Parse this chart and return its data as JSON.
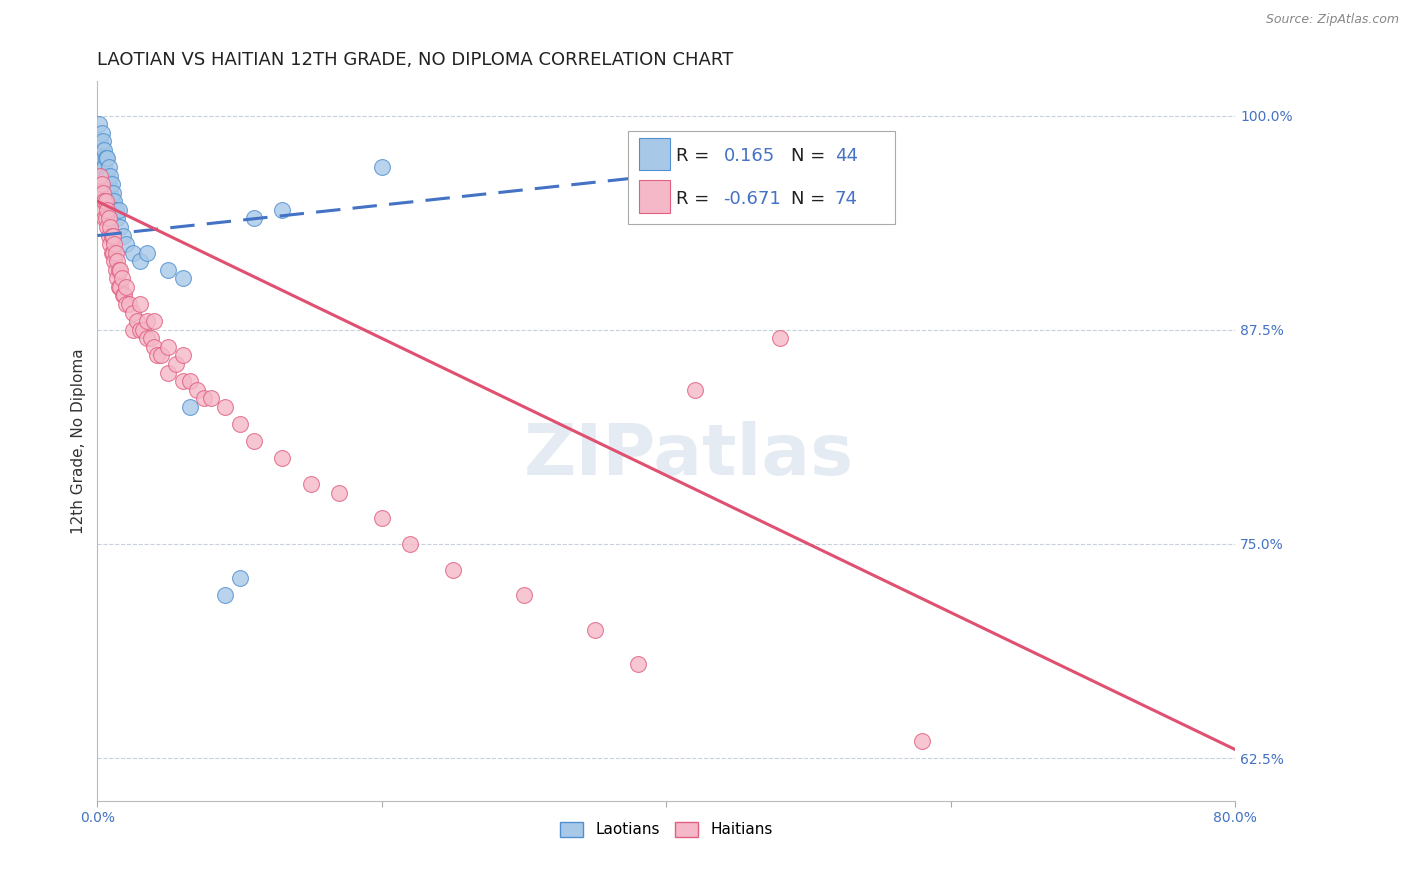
{
  "title": "LAOTIAN VS HAITIAN 12TH GRADE, NO DIPLOMA CORRELATION CHART",
  "ylabel": "12th Grade, No Diploma",
  "source_text": "Source: ZipAtlas.com",
  "xlim": [
    0.0,
    0.8
  ],
  "ylim": [
    0.6,
    1.02
  ],
  "xtick_positions": [
    0.0,
    0.2,
    0.4,
    0.6,
    0.8
  ],
  "xticklabels": [
    "0.0%",
    "",
    "",
    "",
    "80.0%"
  ],
  "ytick_right": [
    1.0,
    0.875,
    0.75,
    0.625
  ],
  "ytick_right_labels": [
    "100.0%",
    "87.5%",
    "75.0%",
    "62.5%"
  ],
  "laotian_fill_color": "#a8c8e8",
  "haitian_fill_color": "#f4b8c8",
  "laotian_edge_color": "#5090d0",
  "haitian_edge_color": "#e06080",
  "laotian_line_color": "#4472c4",
  "haitian_line_color": "#e05070",
  "R_laotian": 0.165,
  "N_laotian": 44,
  "R_haitian": -0.671,
  "N_haitian": 74,
  "background_color": "#ffffff",
  "grid_color": "#c8d0dc",
  "laotian_x": [
    0.001,
    0.002,
    0.002,
    0.003,
    0.003,
    0.003,
    0.004,
    0.004,
    0.004,
    0.005,
    0.005,
    0.005,
    0.006,
    0.006,
    0.007,
    0.007,
    0.007,
    0.008,
    0.008,
    0.008,
    0.009,
    0.009,
    0.01,
    0.01,
    0.011,
    0.012,
    0.013,
    0.014,
    0.015,
    0.016,
    0.018,
    0.02,
    0.025,
    0.03,
    0.035,
    0.05,
    0.06,
    0.065,
    0.09,
    0.1,
    0.11,
    0.13,
    0.2,
    0.45
  ],
  "laotian_y": [
    0.995,
    0.985,
    0.975,
    0.99,
    0.98,
    0.97,
    0.985,
    0.975,
    0.965,
    0.98,
    0.97,
    0.96,
    0.975,
    0.965,
    0.975,
    0.965,
    0.955,
    0.97,
    0.96,
    0.95,
    0.965,
    0.955,
    0.96,
    0.95,
    0.955,
    0.95,
    0.945,
    0.94,
    0.945,
    0.935,
    0.93,
    0.925,
    0.92,
    0.915,
    0.92,
    0.91,
    0.905,
    0.83,
    0.72,
    0.73,
    0.94,
    0.945,
    0.97,
    0.975
  ],
  "haitian_x": [
    0.001,
    0.002,
    0.002,
    0.003,
    0.003,
    0.004,
    0.004,
    0.005,
    0.005,
    0.006,
    0.006,
    0.007,
    0.007,
    0.008,
    0.008,
    0.009,
    0.009,
    0.01,
    0.01,
    0.011,
    0.011,
    0.012,
    0.012,
    0.013,
    0.013,
    0.014,
    0.014,
    0.015,
    0.015,
    0.016,
    0.016,
    0.017,
    0.018,
    0.019,
    0.02,
    0.02,
    0.022,
    0.025,
    0.025,
    0.028,
    0.03,
    0.03,
    0.032,
    0.035,
    0.035,
    0.038,
    0.04,
    0.04,
    0.042,
    0.045,
    0.05,
    0.05,
    0.055,
    0.06,
    0.06,
    0.065,
    0.07,
    0.075,
    0.08,
    0.09,
    0.1,
    0.11,
    0.13,
    0.15,
    0.17,
    0.2,
    0.22,
    0.25,
    0.3,
    0.35,
    0.38,
    0.42,
    0.48,
    0.58
  ],
  "haitian_y": [
    0.96,
    0.965,
    0.955,
    0.96,
    0.95,
    0.955,
    0.945,
    0.95,
    0.94,
    0.95,
    0.94,
    0.945,
    0.935,
    0.94,
    0.93,
    0.935,
    0.925,
    0.93,
    0.92,
    0.93,
    0.92,
    0.925,
    0.915,
    0.92,
    0.91,
    0.915,
    0.905,
    0.91,
    0.9,
    0.91,
    0.9,
    0.905,
    0.895,
    0.895,
    0.9,
    0.89,
    0.89,
    0.885,
    0.875,
    0.88,
    0.89,
    0.875,
    0.875,
    0.88,
    0.87,
    0.87,
    0.88,
    0.865,
    0.86,
    0.86,
    0.865,
    0.85,
    0.855,
    0.86,
    0.845,
    0.845,
    0.84,
    0.835,
    0.835,
    0.83,
    0.82,
    0.81,
    0.8,
    0.785,
    0.78,
    0.765,
    0.75,
    0.735,
    0.72,
    0.7,
    0.68,
    0.84,
    0.87,
    0.635
  ],
  "title_fontsize": 13,
  "label_fontsize": 11,
  "tick_fontsize": 10,
  "legend_fontsize": 13,
  "legend_color_text": "#4472c4"
}
